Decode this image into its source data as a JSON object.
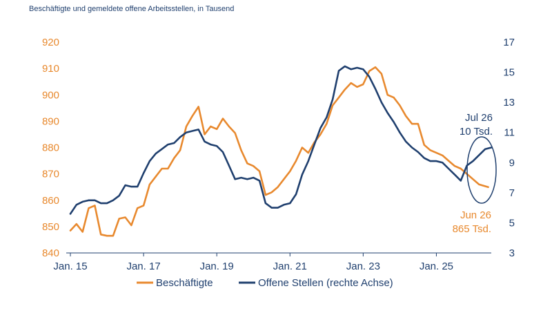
{
  "chart_data": {
    "type": "line",
    "subtitle": "Beschäftigte und gemeldete offene Arbeitsstellen, in Tausend",
    "x_ticks": [
      "Jan. 15",
      "Jan. 17",
      "Jan. 19",
      "Jan. 21",
      "Jan. 23",
      "Jan. 25"
    ],
    "y_left": {
      "ticks": [
        "920",
        "910",
        "900",
        "890",
        "880",
        "870",
        "860",
        "850",
        "840"
      ],
      "range": [
        840,
        920
      ]
    },
    "y_right": {
      "ticks": [
        "17",
        "15",
        "13",
        "11",
        "9",
        "7",
        "5",
        "3"
      ],
      "range": [
        3,
        17
      ]
    },
    "grid": false,
    "legend_position": "bottom",
    "series": [
      {
        "name": "Beschäftigte",
        "axis": "left",
        "color": "#e8892e",
        "points": [
          [
            "2015-01",
            848.5
          ],
          [
            "2015-03",
            851
          ],
          [
            "2015-05",
            848
          ],
          [
            "2015-07",
            857
          ],
          [
            "2015-09",
            858
          ],
          [
            "2015-11",
            847
          ],
          [
            "2016-01",
            846.5
          ],
          [
            "2016-03",
            846.5
          ],
          [
            "2016-05",
            853
          ],
          [
            "2016-07",
            853.5
          ],
          [
            "2016-09",
            850.5
          ],
          [
            "2016-11",
            857
          ],
          [
            "2017-01",
            858
          ],
          [
            "2017-03",
            866
          ],
          [
            "2017-05",
            869
          ],
          [
            "2017-07",
            872
          ],
          [
            "2017-09",
            872
          ],
          [
            "2017-11",
            876
          ],
          [
            "2018-01",
            879
          ],
          [
            "2018-03",
            888
          ],
          [
            "2018-05",
            892
          ],
          [
            "2018-07",
            895.5
          ],
          [
            "2018-09",
            885
          ],
          [
            "2018-11",
            888
          ],
          [
            "2019-01",
            887
          ],
          [
            "2019-03",
            891
          ],
          [
            "2019-05",
            888
          ],
          [
            "2019-07",
            885.5
          ],
          [
            "2019-09",
            879
          ],
          [
            "2019-11",
            874
          ],
          [
            "2020-01",
            873
          ],
          [
            "2020-03",
            871
          ],
          [
            "2020-05",
            862
          ],
          [
            "2020-07",
            863
          ],
          [
            "2020-09",
            865
          ],
          [
            "2020-11",
            868
          ],
          [
            "2021-01",
            871
          ],
          [
            "2021-03",
            875
          ],
          [
            "2021-05",
            880
          ],
          [
            "2021-07",
            878
          ],
          [
            "2021-09",
            882
          ],
          [
            "2021-11",
            885
          ],
          [
            "2022-01",
            889
          ],
          [
            "2022-03",
            896
          ],
          [
            "2022-05",
            899
          ],
          [
            "2022-07",
            902
          ],
          [
            "2022-09",
            904.5
          ],
          [
            "2022-11",
            903
          ],
          [
            "2023-01",
            904
          ],
          [
            "2023-03",
            909
          ],
          [
            "2023-05",
            910.5
          ],
          [
            "2023-07",
            908
          ],
          [
            "2023-09",
            900
          ],
          [
            "2023-11",
            899
          ],
          [
            "2024-01",
            896
          ],
          [
            "2024-03",
            892
          ],
          [
            "2024-05",
            889
          ],
          [
            "2024-07",
            889
          ],
          [
            "2024-09",
            881
          ],
          [
            "2024-11",
            879
          ],
          [
            "2025-01",
            878
          ],
          [
            "2025-03",
            877
          ],
          [
            "2025-05",
            875
          ],
          [
            "2025-07",
            873
          ],
          [
            "2025-09",
            872
          ],
          [
            "2025-11",
            870
          ],
          [
            "2026-01",
            868
          ],
          [
            "2026-03",
            866
          ],
          [
            "2026-06",
            865
          ]
        ]
      },
      {
        "name": "Offene Stellen (rechte Achse)",
        "axis": "right",
        "color": "#1f3f6e",
        "points": [
          [
            "2015-01",
            5.6
          ],
          [
            "2015-03",
            6.2
          ],
          [
            "2015-05",
            6.4
          ],
          [
            "2015-07",
            6.5
          ],
          [
            "2015-09",
            6.5
          ],
          [
            "2015-11",
            6.3
          ],
          [
            "2016-01",
            6.3
          ],
          [
            "2016-03",
            6.5
          ],
          [
            "2016-05",
            6.8
          ],
          [
            "2016-07",
            7.5
          ],
          [
            "2016-09",
            7.4
          ],
          [
            "2016-11",
            7.4
          ],
          [
            "2017-01",
            8.3
          ],
          [
            "2017-03",
            9.1
          ],
          [
            "2017-05",
            9.6
          ],
          [
            "2017-07",
            9.9
          ],
          [
            "2017-09",
            10.2
          ],
          [
            "2017-11",
            10.3
          ],
          [
            "2018-01",
            10.7
          ],
          [
            "2018-03",
            11.0
          ],
          [
            "2018-05",
            11.1
          ],
          [
            "2018-07",
            11.2
          ],
          [
            "2018-09",
            10.4
          ],
          [
            "2018-11",
            10.2
          ],
          [
            "2019-01",
            10.1
          ],
          [
            "2019-03",
            9.7
          ],
          [
            "2019-05",
            8.8
          ],
          [
            "2019-07",
            7.9
          ],
          [
            "2019-09",
            8.0
          ],
          [
            "2019-11",
            7.9
          ],
          [
            "2020-01",
            8.0
          ],
          [
            "2020-03",
            7.8
          ],
          [
            "2020-05",
            6.3
          ],
          [
            "2020-07",
            6.0
          ],
          [
            "2020-09",
            6.0
          ],
          [
            "2020-11",
            6.2
          ],
          [
            "2021-01",
            6.3
          ],
          [
            "2021-03",
            6.9
          ],
          [
            "2021-05",
            8.2
          ],
          [
            "2021-07",
            9.1
          ],
          [
            "2021-09",
            10.2
          ],
          [
            "2021-11",
            11.3
          ],
          [
            "2022-01",
            12.0
          ],
          [
            "2022-03",
            13.2
          ],
          [
            "2022-05",
            15.1
          ],
          [
            "2022-07",
            15.4
          ],
          [
            "2022-09",
            15.2
          ],
          [
            "2022-11",
            15.3
          ],
          [
            "2023-01",
            15.2
          ],
          [
            "2023-03",
            14.7
          ],
          [
            "2023-05",
            13.9
          ],
          [
            "2023-07",
            13.0
          ],
          [
            "2023-09",
            12.3
          ],
          [
            "2023-11",
            11.7
          ],
          [
            "2024-01",
            11.0
          ],
          [
            "2024-03",
            10.4
          ],
          [
            "2024-05",
            10.0
          ],
          [
            "2024-07",
            9.7
          ],
          [
            "2024-09",
            9.3
          ],
          [
            "2024-11",
            9.1
          ],
          [
            "2025-01",
            9.1
          ],
          [
            "2025-03",
            9.0
          ],
          [
            "2025-05",
            8.6
          ],
          [
            "2025-07",
            8.2
          ],
          [
            "2025-09",
            7.8
          ],
          [
            "2025-11",
            8.8
          ],
          [
            "2026-01",
            9.1
          ],
          [
            "2026-03",
            9.5
          ],
          [
            "2026-05",
            9.9
          ],
          [
            "2026-07",
            10.0
          ]
        ]
      }
    ],
    "annotations": {
      "blue_line1": "Jul 26",
      "blue_line2": "10 Tsd.",
      "orange_line1": "Jun 26",
      "orange_line2": "865 Tsd."
    },
    "legend": [
      "Beschäftigte",
      "Offene Stellen (rechte Achse)"
    ]
  }
}
